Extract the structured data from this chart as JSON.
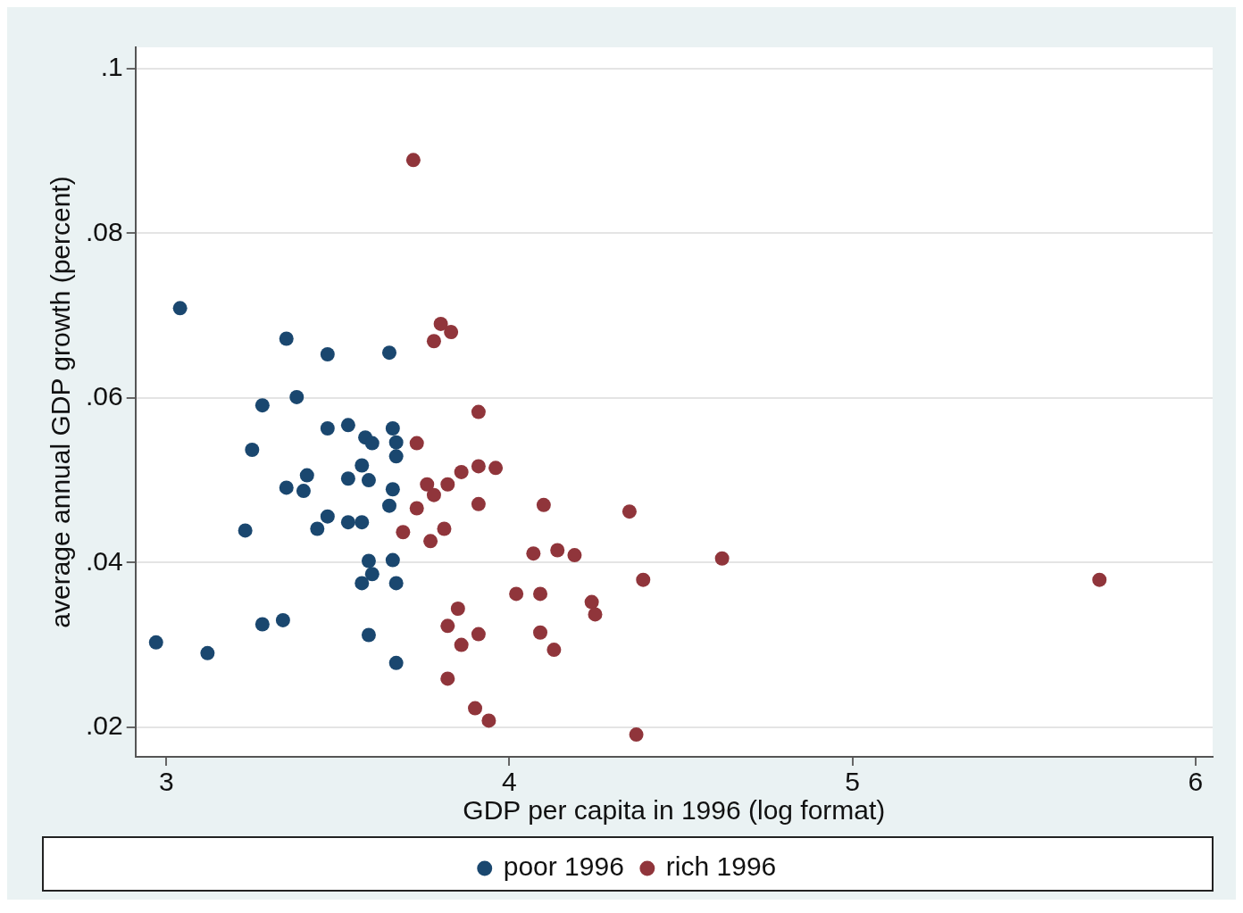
{
  "chart_data": {
    "type": "scatter",
    "xlabel": "GDP per capita in 1996 (log format)",
    "ylabel": "average annual GDP growth (percent)",
    "xlim": [
      2.91,
      6.05
    ],
    "ylim": [
      0.0164,
      0.1026
    ],
    "xticks": [
      3,
      4,
      5,
      6
    ],
    "yticks": [
      {
        "value": 0.02,
        "label": ".02"
      },
      {
        "value": 0.04,
        "label": ".04"
      },
      {
        "value": 0.06,
        "label": ".06"
      },
      {
        "value": 0.08,
        "label": ".08"
      },
      {
        "value": 0.1,
        "label": ".1"
      }
    ],
    "grid": "y",
    "legend": "bottom",
    "marker": "circle",
    "series": [
      {
        "name": "poor 1996",
        "color": "#1a476f",
        "x": [
          3.04,
          3.35,
          3.47,
          3.65,
          3.28,
          3.38,
          3.25,
          3.47,
          3.53,
          3.58,
          3.6,
          3.66,
          3.67,
          3.67,
          3.57,
          3.53,
          3.59,
          3.41,
          3.35,
          3.4,
          3.66,
          3.65,
          3.47,
          3.44,
          3.23,
          3.53,
          3.57,
          3.59,
          3.66,
          3.6,
          3.57,
          3.67,
          3.28,
          3.34,
          3.59,
          2.97,
          3.12,
          3.67
        ],
        "values": [
          0.0709,
          0.0672,
          0.0653,
          0.0655,
          0.0591,
          0.0601,
          0.0537,
          0.0563,
          0.0567,
          0.0552,
          0.0545,
          0.0563,
          0.0546,
          0.0529,
          0.0518,
          0.0502,
          0.05,
          0.0506,
          0.0491,
          0.0487,
          0.0489,
          0.0469,
          0.0456,
          0.0441,
          0.0439,
          0.0449,
          0.0449,
          0.0402,
          0.0403,
          0.0386,
          0.0375,
          0.0375,
          0.0325,
          0.033,
          0.0312,
          0.0303,
          0.029,
          0.0278
        ]
      },
      {
        "name": "rich 1996",
        "color": "#90353b",
        "x": [
          3.72,
          3.8,
          3.83,
          3.78,
          3.91,
          3.73,
          3.91,
          3.96,
          3.86,
          3.82,
          3.76,
          3.78,
          3.73,
          3.91,
          4.1,
          4.35,
          3.81,
          3.77,
          3.69,
          4.07,
          4.14,
          4.19,
          4.62,
          4.39,
          5.72,
          4.02,
          4.09,
          4.24,
          4.25,
          3.85,
          3.82,
          3.91,
          4.09,
          3.86,
          4.13,
          3.82,
          3.9,
          3.94,
          4.37
        ],
        "values": [
          0.0889,
          0.069,
          0.068,
          0.0669,
          0.0583,
          0.0545,
          0.0517,
          0.0515,
          0.051,
          0.0495,
          0.0495,
          0.0482,
          0.0466,
          0.0471,
          0.047,
          0.0462,
          0.0441,
          0.0426,
          0.0437,
          0.0411,
          0.0415,
          0.0409,
          0.0405,
          0.0379,
          0.0379,
          0.0362,
          0.0362,
          0.0352,
          0.0337,
          0.0344,
          0.0323,
          0.0313,
          0.0315,
          0.03,
          0.0294,
          0.0259,
          0.0223,
          0.0208,
          0.0191
        ]
      }
    ]
  }
}
